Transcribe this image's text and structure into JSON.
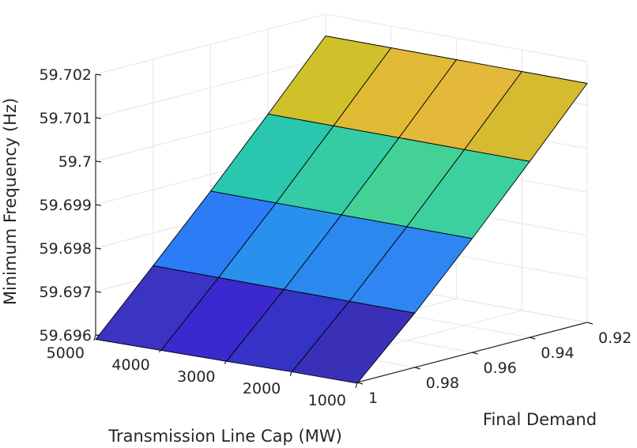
{
  "chart_data": {
    "type": "surface",
    "title": "",
    "xlabel": "Transmission Line Cap (MW)",
    "ylabel": "Final Demand",
    "zlabel": "Minimum Frequency (Hz)",
    "x": [
      1000,
      2000,
      3000,
      4000,
      5000
    ],
    "y": [
      0.92,
      0.94,
      0.96,
      0.98,
      1
    ],
    "z": [
      [
        59.7015,
        59.7015,
        59.7015,
        59.7015,
        59.7015
      ],
      [
        59.70005,
        59.70005,
        59.70005,
        59.70005,
        59.70005
      ],
      [
        59.69862,
        59.69862,
        59.69862,
        59.69862,
        59.69862
      ],
      [
        59.69725,
        59.69725,
        59.69725,
        59.69725,
        59.69725
      ],
      [
        59.69598,
        59.69597,
        59.69594,
        59.69592,
        59.6959
      ]
    ],
    "face_colors": [
      [
        "#d4bb2f",
        "#e4b83a",
        "#e0ba35",
        "#cfc12a"
      ],
      [
        "#3ccfa0",
        "#44d196",
        "#34cba5",
        "#28c7ae"
      ],
      [
        "#2f86f2",
        "#2a88ef",
        "#2a90ee",
        "#2c7cf6"
      ],
      [
        "#3a30b8",
        "#3533c6",
        "#3b28ce",
        "#3b33c2"
      ]
    ],
    "xticks": [
      "1000",
      "2000",
      "3000",
      "4000",
      "5000"
    ],
    "yticks": [
      "0.92",
      "0.94",
      "0.96",
      "0.98",
      "1"
    ],
    "zticks": [
      "59.696",
      "59.697",
      "59.698",
      "59.699",
      "59.7",
      "59.701",
      "59.702"
    ],
    "xlim": [
      1000,
      5000
    ],
    "ylim": [
      0.92,
      1
    ],
    "zlim": [
      59.696,
      59.702
    ],
    "grid": true,
    "legend": "none"
  }
}
